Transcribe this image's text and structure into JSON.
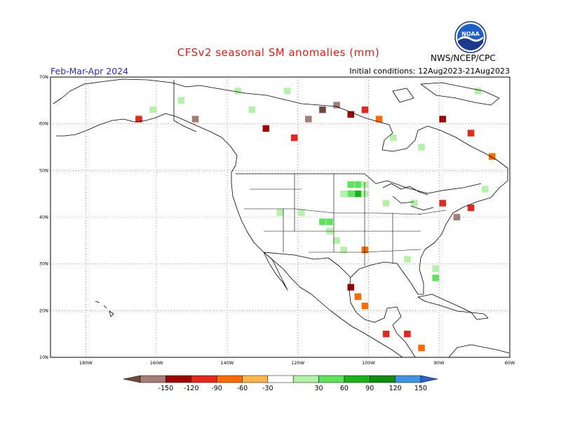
{
  "header": {
    "title": "CFSv2 seasonal SM anomalies (mm)",
    "season": "Feb-Mar-Apr 2024",
    "initial_conditions": "Initial conditions: 12Aug2023-21Aug2023",
    "agency": "NWS/NCEP/CPC"
  },
  "logo": {
    "text": "NOAA",
    "icon": "noaa-logo-icon",
    "colors": {
      "ring": "#1b3a8c",
      "sky": "#1f5fc8",
      "gull": "#ffffff"
    }
  },
  "axes": {
    "lat_labels": [
      "70N",
      "60N",
      "50N",
      "40N",
      "30N",
      "20N",
      "10N"
    ],
    "lon_labels": [
      "180W",
      "160W",
      "140W",
      "120W",
      "100W",
      "80W",
      "60W"
    ],
    "lat_range": [
      10,
      70
    ],
    "lon_range": [
      -190,
      -60
    ],
    "gridlines": "dotted"
  },
  "colorbar": {
    "labels": [
      "-150",
      "-120",
      "-90",
      "-60",
      "-30",
      "30",
      "60",
      "90",
      "120",
      "150"
    ],
    "colors": [
      "#6e4a3c",
      "#a47e73",
      "#a50000",
      "#e7261c",
      "#ff6a00",
      "#ffb648",
      "#ffffff",
      "#b4f2a8",
      "#5fe35a",
      "#18b419",
      "#0f8d0e",
      "#3f94e8",
      "#2a5fd8"
    ]
  },
  "chart_data": {
    "type": "heatmap",
    "title": "CFSv2 seasonal SM anomalies (mm)",
    "units": "mm",
    "levels": [
      -150,
      -120,
      -90,
      -60,
      -30,
      30,
      60,
      90,
      120,
      150
    ],
    "x_axis": "longitude",
    "y_axis": "latitude",
    "lon_range": [
      -190,
      -60
    ],
    "lat_range": [
      10,
      70
    ],
    "cells": [
      {
        "lon": -105,
        "lat": 47,
        "v": 90
      },
      {
        "lon": -103,
        "lat": 47,
        "v": 90
      },
      {
        "lon": -101,
        "lat": 47,
        "v": 60
      },
      {
        "lon": -107,
        "lat": 45,
        "v": 60
      },
      {
        "lon": -105,
        "lat": 45,
        "v": 90
      },
      {
        "lon": -103,
        "lat": 45,
        "v": 120
      },
      {
        "lon": -101,
        "lat": 45,
        "v": 60
      },
      {
        "lon": -113,
        "lat": 39,
        "v": 90
      },
      {
        "lon": -111,
        "lat": 39,
        "v": 90
      },
      {
        "lon": -111,
        "lat": 37,
        "v": 60
      },
      {
        "lon": -109,
        "lat": 35,
        "v": 60
      },
      {
        "lon": -107,
        "lat": 33,
        "v": 30
      },
      {
        "lon": -125,
        "lat": 41,
        "v": 30
      },
      {
        "lon": -119,
        "lat": 41,
        "v": 30
      },
      {
        "lon": -101,
        "lat": 33,
        "v": -30
      },
      {
        "lon": -103,
        "lat": 23,
        "v": -30
      },
      {
        "lon": -101,
        "lat": 21,
        "v": -30
      },
      {
        "lon": -105,
        "lat": 25,
        "v": -90
      },
      {
        "lon": -95,
        "lat": 15,
        "v": -60
      },
      {
        "lon": -89,
        "lat": 15,
        "v": -60
      },
      {
        "lon": -85,
        "lat": 12,
        "v": -30
      },
      {
        "lon": -75,
        "lat": 40,
        "v": -120
      },
      {
        "lon": -71,
        "lat": 42,
        "v": -60
      },
      {
        "lon": -81,
        "lat": 29,
        "v": 60
      },
      {
        "lon": -81,
        "lat": 27,
        "v": 90
      },
      {
        "lon": -89,
        "lat": 31,
        "v": 30
      },
      {
        "lon": -95,
        "lat": 43,
        "v": 60
      },
      {
        "lon": -117,
        "lat": 61,
        "v": -120
      },
      {
        "lon": -113,
        "lat": 63,
        "v": -150
      },
      {
        "lon": -109,
        "lat": 64,
        "v": -120
      },
      {
        "lon": -105,
        "lat": 62,
        "v": -90
      },
      {
        "lon": -101,
        "lat": 63,
        "v": -60
      },
      {
        "lon": -97,
        "lat": 61,
        "v": -30
      },
      {
        "lon": -121,
        "lat": 57,
        "v": -60
      },
      {
        "lon": -129,
        "lat": 59,
        "v": -90
      },
      {
        "lon": -133,
        "lat": 63,
        "v": 30
      },
      {
        "lon": -137,
        "lat": 67,
        "v": 60
      },
      {
        "lon": -153,
        "lat": 65,
        "v": 60
      },
      {
        "lon": -161,
        "lat": 63,
        "v": 30
      },
      {
        "lon": -149,
        "lat": 61,
        "v": -120
      },
      {
        "lon": -165,
        "lat": 61,
        "v": -60
      },
      {
        "lon": -123,
        "lat": 67,
        "v": 60
      },
      {
        "lon": -93,
        "lat": 57,
        "v": 30
      },
      {
        "lon": -85,
        "lat": 55,
        "v": 60
      },
      {
        "lon": -79,
        "lat": 61,
        "v": -90
      },
      {
        "lon": -71,
        "lat": 58,
        "v": -60
      },
      {
        "lon": -65,
        "lat": 53,
        "v": -30
      },
      {
        "lon": -69,
        "lat": 67,
        "v": 60
      },
      {
        "lon": -87,
        "lat": 43,
        "v": 30
      },
      {
        "lon": -79,
        "lat": 43,
        "v": -60
      },
      {
        "lon": -67,
        "lat": 46,
        "v": 30
      }
    ]
  }
}
